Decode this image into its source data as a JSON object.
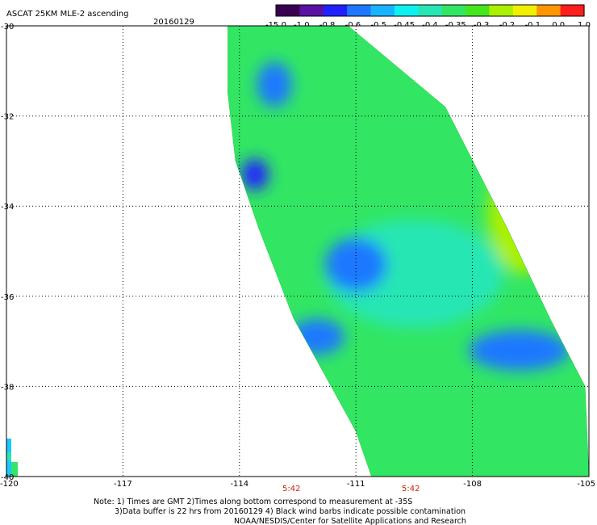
{
  "title": "ASCAT 25KM MLE-2 ascending",
  "date": "20160129",
  "colorbar": {
    "ticks": [
      "-15.0",
      "-1.0",
      "-0.8",
      "-0.6",
      "-0.5",
      "-0.45",
      "-0.4",
      "-0.35",
      "-0.3",
      "-0.2",
      "-0.1",
      "0.0",
      "1.0"
    ],
    "colors": [
      "#3a0050",
      "#5a10a0",
      "#2020ff",
      "#1e78ff",
      "#19b4ff",
      "#0ff0f0",
      "#28e6b4",
      "#32e664",
      "#46e61e",
      "#aaf000",
      "#f0f000",
      "#ff9600",
      "#ff1e1e"
    ]
  },
  "times": [
    "5:42",
    "5:42"
  ],
  "notes": [
    "Note: 1) Times are GMT 2)Times along bottom correspond to measurement at -35S",
    "3)Data buffer is 22 hrs from 20160129 4) Black wind barbs indicate possible contamination",
    "NOAA/NESDIS/Center for Satellite Applications and Research"
  ],
  "chart_data": {
    "type": "heatmap",
    "title": "ASCAT 25KM MLE-2 ascending",
    "xlim": [
      -120,
      -105
    ],
    "ylim": [
      -40,
      -30
    ],
    "x_ticks": [
      "-120",
      "-117",
      "-114",
      "-111",
      "-108",
      "-105"
    ],
    "y_ticks": [
      "-30",
      "-32",
      "-34",
      "-36",
      "-38",
      "-40"
    ],
    "grid": true,
    "swath_polygon_lonlat": [
      [
        -114.3,
        -30
      ],
      [
        -111.2,
        -30
      ],
      [
        -108.7,
        -31.8
      ],
      [
        -107.1,
        -34.5
      ],
      [
        -106.0,
        -36.5
      ],
      [
        -105.1,
        -38.0
      ],
      [
        -105,
        -40
      ],
      [
        -110.6,
        -40
      ],
      [
        -111.0,
        -39.0
      ],
      [
        -112.6,
        -36.5
      ],
      [
        -113.5,
        -34.5
      ],
      [
        -114.1,
        -33.0
      ],
      [
        -114.3,
        -31.5
      ]
    ],
    "features": [
      {
        "value": "-0.8",
        "lon": -113.6,
        "lat": -33.3,
        "rlon": 0.35,
        "rlat": 0.35
      },
      {
        "value": "-0.6",
        "lon": -113.1,
        "lat": -31.3,
        "rlon": 0.45,
        "rlat": 0.5
      },
      {
        "value": "-0.6",
        "lon": -111.0,
        "lat": -35.3,
        "rlon": 0.8,
        "rlat": 0.6
      },
      {
        "value": "-0.6",
        "lon": -112.0,
        "lat": -36.9,
        "rlon": 0.7,
        "rlat": 0.4
      },
      {
        "value": "-0.6",
        "lon": -106.8,
        "lat": -37.2,
        "rlon": 1.3,
        "rlat": 0.45
      },
      {
        "value": "-0.4",
        "lon": -109.5,
        "lat": -35.5,
        "rlon": 2.3,
        "rlat": 1.2
      },
      {
        "value": "-0.2",
        "lon": -106.7,
        "lat": -34.2,
        "rlon": 0.9,
        "rlat": 1.3
      }
    ]
  }
}
